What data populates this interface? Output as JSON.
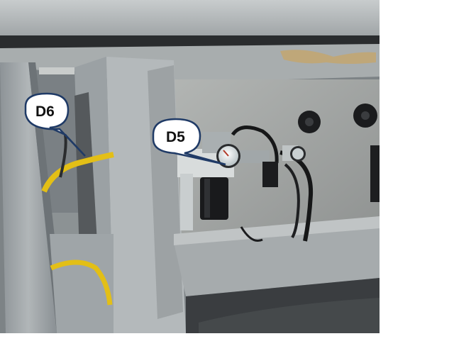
{
  "callouts": [
    {
      "label": "D6",
      "target": "yellow-air-hose"
    },
    {
      "label": "D5",
      "target": "pressure-regulator-gauge"
    }
  ],
  "colors": {
    "frame": "#9aa0a3",
    "panel": "#a3a7a6",
    "hose": "#e5c21a",
    "callout_fill": "#ffffff",
    "callout_stroke": "#1f3a66"
  }
}
